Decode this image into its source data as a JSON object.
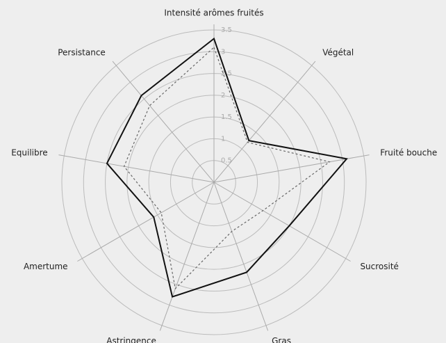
{
  "chart_data": {
    "type": "radar",
    "categories": [
      "Intensité arômes fruités",
      "Végétal",
      "Fruité bouche",
      "Sucrosité",
      "Gras",
      "Astringence",
      "Amertume",
      "Equilibre",
      "Persistance"
    ],
    "series": [
      {
        "color": "#111111",
        "style": "solid",
        "values": [
          3.3,
          1.25,
          3.1,
          2.0,
          2.2,
          2.8,
          1.6,
          2.5,
          2.6
        ]
      },
      {
        "color": "#666666",
        "style": "dotted",
        "values": [
          3.1,
          1.2,
          2.7,
          1.3,
          1.2,
          2.6,
          1.4,
          2.1,
          2.3
        ]
      }
    ],
    "ylim": [
      0,
      3.5
    ],
    "yticks": [
      0.5,
      1.0,
      1.5,
      2.0,
      2.5,
      3.0,
      3.5
    ],
    "grid": true
  }
}
